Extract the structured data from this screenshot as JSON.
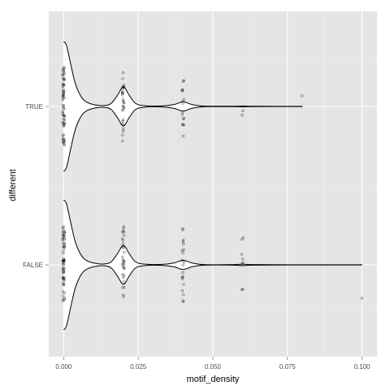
{
  "chart_data": {
    "type": "violin",
    "orientation": "horizontal",
    "xlabel": "motif_density",
    "ylabel": "different",
    "xlim": [
      -0.005,
      0.105
    ],
    "x_ticks": [
      0.0,
      0.025,
      0.05,
      0.075,
      0.1
    ],
    "x_tick_labels": [
      "0.000",
      "0.025",
      "0.050",
      "0.075",
      "0.100"
    ],
    "categories": [
      "FALSE",
      "TRUE"
    ],
    "grid": true,
    "legend": "none",
    "colors": {
      "panel": "#e5e5e5",
      "grid": "#ffffff",
      "outline": "#000000",
      "point": "#000000"
    },
    "groups": [
      {
        "category": "FALSE",
        "max_density": 0.1,
        "violin_profile": [
          [
            0.0,
            1.0
          ],
          [
            0.001,
            0.93
          ],
          [
            0.0025,
            0.62
          ],
          [
            0.004,
            0.34
          ],
          [
            0.006,
            0.14
          ],
          [
            0.008,
            0.06
          ],
          [
            0.011,
            0.02
          ],
          [
            0.014,
            0.015
          ],
          [
            0.016,
            0.05
          ],
          [
            0.018,
            0.17
          ],
          [
            0.02,
            0.3
          ],
          [
            0.022,
            0.17
          ],
          [
            0.024,
            0.05
          ],
          [
            0.027,
            0.012
          ],
          [
            0.033,
            0.008
          ],
          [
            0.037,
            0.03
          ],
          [
            0.04,
            0.07
          ],
          [
            0.043,
            0.03
          ],
          [
            0.047,
            0.005
          ],
          [
            0.057,
            0.004
          ],
          [
            0.06,
            0.012
          ],
          [
            0.063,
            0.004
          ],
          [
            0.075,
            0.0015
          ],
          [
            0.1,
            0.001
          ]
        ],
        "points": [
          {
            "x": 0.0,
            "n": 60
          },
          {
            "x": 0.02,
            "n": 30
          },
          {
            "x": 0.04,
            "n": 20
          },
          {
            "x": 0.06,
            "n": 8
          },
          {
            "x": 0.1,
            "n": 1
          }
        ]
      },
      {
        "category": "TRUE",
        "max_density": 0.08,
        "violin_profile": [
          [
            0.0,
            1.0
          ],
          [
            0.001,
            0.93
          ],
          [
            0.0025,
            0.62
          ],
          [
            0.004,
            0.34
          ],
          [
            0.006,
            0.14
          ],
          [
            0.008,
            0.06
          ],
          [
            0.011,
            0.02
          ],
          [
            0.014,
            0.015
          ],
          [
            0.016,
            0.05
          ],
          [
            0.018,
            0.17
          ],
          [
            0.02,
            0.3
          ],
          [
            0.022,
            0.17
          ],
          [
            0.024,
            0.05
          ],
          [
            0.027,
            0.012
          ],
          [
            0.033,
            0.008
          ],
          [
            0.037,
            0.03
          ],
          [
            0.04,
            0.07
          ],
          [
            0.043,
            0.03
          ],
          [
            0.047,
            0.005
          ],
          [
            0.057,
            0.003
          ],
          [
            0.06,
            0.006
          ],
          [
            0.063,
            0.003
          ],
          [
            0.07,
            0.0015
          ],
          [
            0.08,
            0.001
          ]
        ],
        "points": [
          {
            "x": 0.0,
            "n": 60
          },
          {
            "x": 0.02,
            "n": 30
          },
          {
            "x": 0.04,
            "n": 16
          },
          {
            "x": 0.06,
            "n": 2
          },
          {
            "x": 0.08,
            "n": 1
          }
        ]
      }
    ]
  }
}
